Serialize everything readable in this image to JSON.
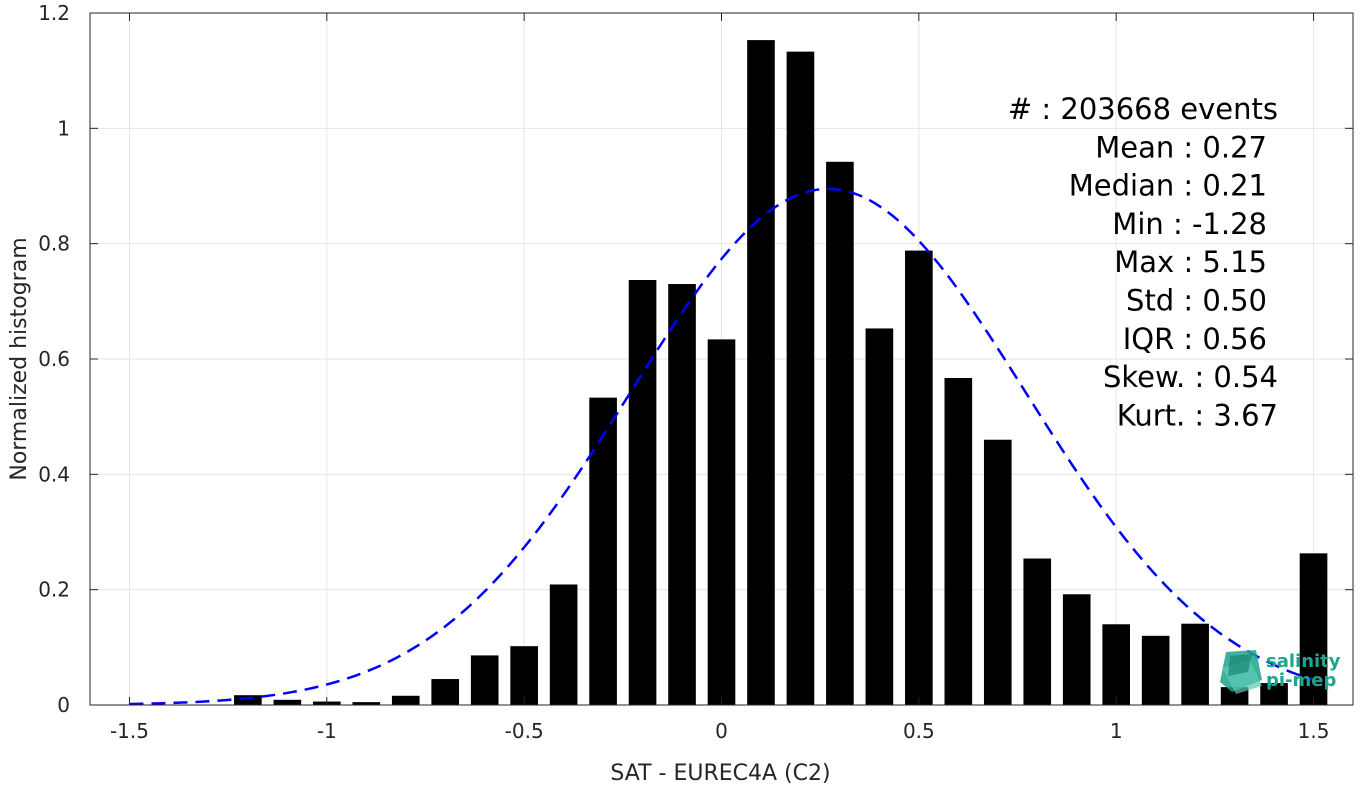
{
  "chart_data": {
    "type": "bar",
    "xlabel": "SAT - EUREC4A (C2)",
    "ylabel": "Normalized histogram",
    "xlim": [
      -1.6,
      1.6
    ],
    "ylim": [
      0,
      1.2
    ],
    "grid": true,
    "x_ticks": [
      -1.5,
      -1,
      -0.5,
      0,
      0.5,
      1,
      1.5
    ],
    "x_tick_labels": [
      "-1.5",
      "-1",
      "-0.5",
      "0",
      "0.5",
      "1",
      "1.5"
    ],
    "y_ticks": [
      0,
      0.2,
      0.4,
      0.6,
      0.8,
      1,
      1.2
    ],
    "y_tick_labels": [
      "0",
      "0.2",
      "0.4",
      "0.6",
      "0.8",
      "1",
      "1.2"
    ],
    "bar_width": 0.07,
    "bar_color": "#000000",
    "bars": [
      {
        "x": -1.2,
        "y": 0.017
      },
      {
        "x": -1.1,
        "y": 0.009
      },
      {
        "x": -1.0,
        "y": 0.006
      },
      {
        "x": -0.9,
        "y": 0.005
      },
      {
        "x": -0.8,
        "y": 0.016
      },
      {
        "x": -0.7,
        "y": 0.045
      },
      {
        "x": -0.6,
        "y": 0.086
      },
      {
        "x": -0.5,
        "y": 0.102
      },
      {
        "x": -0.4,
        "y": 0.209
      },
      {
        "x": -0.3,
        "y": 0.533
      },
      {
        "x": -0.2,
        "y": 0.737
      },
      {
        "x": -0.1,
        "y": 0.73
      },
      {
        "x": 0.0,
        "y": 0.634
      },
      {
        "x": 0.1,
        "y": 1.153
      },
      {
        "x": 0.2,
        "y": 1.133
      },
      {
        "x": 0.3,
        "y": 0.942
      },
      {
        "x": 0.4,
        "y": 0.653
      },
      {
        "x": 0.5,
        "y": 0.788
      },
      {
        "x": 0.6,
        "y": 0.567
      },
      {
        "x": 0.7,
        "y": 0.46
      },
      {
        "x": 0.8,
        "y": 0.254
      },
      {
        "x": 0.9,
        "y": 0.192
      },
      {
        "x": 1.0,
        "y": 0.14
      },
      {
        "x": 1.1,
        "y": 0.12
      },
      {
        "x": 1.2,
        "y": 0.141
      },
      {
        "x": 1.3,
        "y": 0.031
      },
      {
        "x": 1.4,
        "y": 0.038
      },
      {
        "x": 1.5,
        "y": 0.263
      }
    ],
    "fit_curve": {
      "type": "gaussian",
      "mean": 0.27,
      "std": 0.5,
      "peak": 0.895,
      "x_range": [
        -1.5,
        1.5
      ],
      "color": "#0000ff",
      "style": "dashed"
    },
    "stats": [
      {
        "label": "#  : 203668 events"
      },
      {
        "label": "Mean : 0.27"
      },
      {
        "label": "Median : 0.21"
      },
      {
        "label": "Min : -1.28"
      },
      {
        "label": "Max : 5.15"
      },
      {
        "label": "Std : 0.50"
      },
      {
        "label": "IQR : 0.56"
      },
      {
        "label": "Skew. : 0.54"
      },
      {
        "label": "Kurt. : 3.67"
      }
    ]
  },
  "logo": {
    "line1": "salinity",
    "line2": "pi-mep",
    "color": "#1aa58c"
  }
}
